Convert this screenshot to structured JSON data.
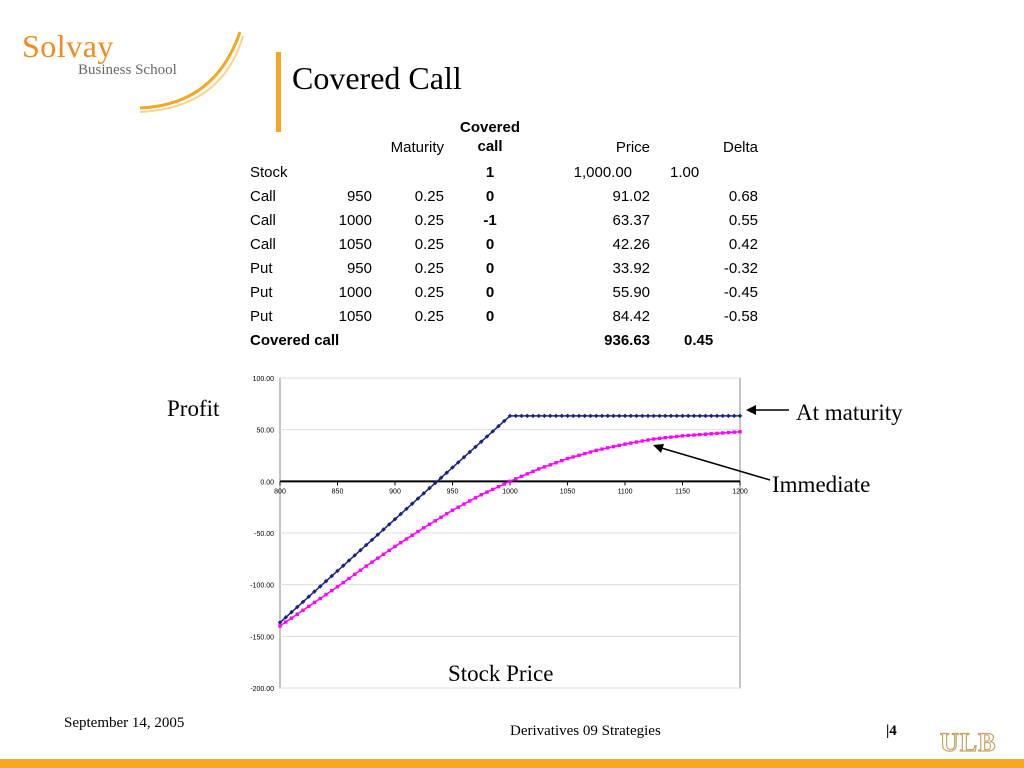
{
  "slide": {
    "logo_name": "Solvay",
    "logo_sub": "Business School",
    "title": "Covered Call",
    "footer_date": "September 14, 2005",
    "footer_center": "Derivatives 09 Strategies",
    "page_number": "|4",
    "ulb_logo": "ULB",
    "accent_color": "#f5a623"
  },
  "table": {
    "headers": [
      "",
      "",
      "Maturity",
      "Covered call",
      "Price",
      "Delta"
    ],
    "rows": [
      [
        "Stock",
        "",
        "",
        "1",
        "1,000.00",
        "1.00"
      ],
      [
        "Call",
        "950",
        "0.25",
        "0",
        "91.02",
        "0.68"
      ],
      [
        "Call",
        "1000",
        "0.25",
        "-1",
        "63.37",
        "0.55"
      ],
      [
        "Call",
        "1050",
        "0.25",
        "0",
        "42.26",
        "0.42"
      ],
      [
        "Put",
        "950",
        "0.25",
        "0",
        "33.92",
        "-0.32"
      ],
      [
        "Put",
        "1000",
        "0.25",
        "0",
        "55.90",
        "-0.45"
      ],
      [
        "Put",
        "1050",
        "0.25",
        "0",
        "84.42",
        "-0.58"
      ]
    ],
    "total": [
      "Covered call",
      "",
      "",
      "",
      "936.63",
      "0.45"
    ]
  },
  "chart_data": {
    "type": "line",
    "ylabel": "Profit",
    "xlabel": "Stock Price",
    "xlim": [
      800,
      1200
    ],
    "ylim": [
      -200,
      100
    ],
    "x_ticks": [
      800,
      850,
      900,
      950,
      1000,
      1050,
      1100,
      1150,
      1200
    ],
    "x_tick_labels": [
      "800",
      "850",
      "900",
      "950",
      "1000",
      "1050",
      "1100",
      "1150",
      "1200"
    ],
    "y_ticks": [
      100,
      50,
      0,
      -50,
      -100,
      -150,
      -200
    ],
    "y_tick_labels": [
      "100.00",
      "50.00",
      "0.00",
      "-50.00",
      "-100.00",
      "-150.00",
      "-200.00"
    ],
    "grid": true,
    "series": [
      {
        "name": "At maturity",
        "color": "#1a237e",
        "x": [
          800,
          1000,
          1200
        ],
        "y": [
          -136.63,
          63.37,
          63.37
        ]
      },
      {
        "name": "Immediate",
        "color": "#ff00ff",
        "x": [
          800,
          825,
          850,
          875,
          900,
          925,
          950,
          975,
          1000,
          1025,
          1050,
          1075,
          1100,
          1125,
          1150,
          1175,
          1200
        ],
        "y": [
          -140,
          -121,
          -102,
          -82,
          -63,
          -45,
          -28,
          -13,
          0,
          12,
          22,
          30,
          36,
          41,
          44,
          46,
          48
        ]
      }
    ],
    "annotations": [
      "At maturity",
      "Immediate"
    ]
  }
}
